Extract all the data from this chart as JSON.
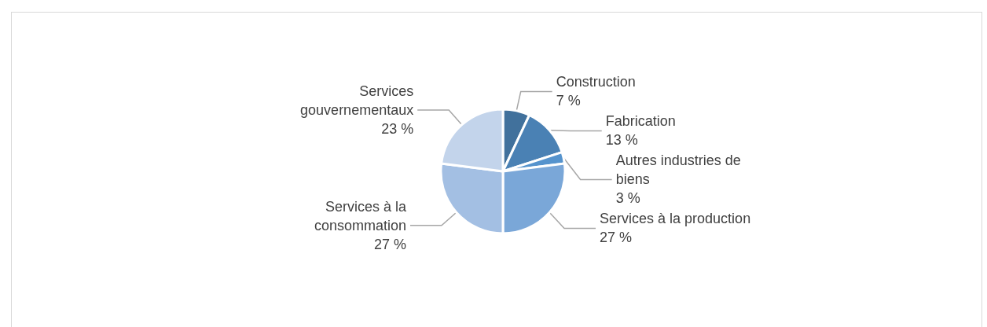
{
  "chart_data": {
    "type": "pie",
    "categories": [
      "Construction",
      "Fabrication",
      "Autres industries de\nbiens",
      "Services à la production",
      "Services à la\nconsommation",
      "Services\ngouvernementaux"
    ],
    "values": [
      7,
      13,
      3,
      27,
      27,
      23
    ],
    "value_labels": [
      "7 %",
      "13 %",
      "3 %",
      "27 %",
      "27 %",
      "23 %"
    ],
    "colors": [
      "#41719c",
      "#4a81b4",
      "#5593cd",
      "#7aa7d8",
      "#a3bfe3",
      "#c3d4eb"
    ],
    "legend": false
  }
}
